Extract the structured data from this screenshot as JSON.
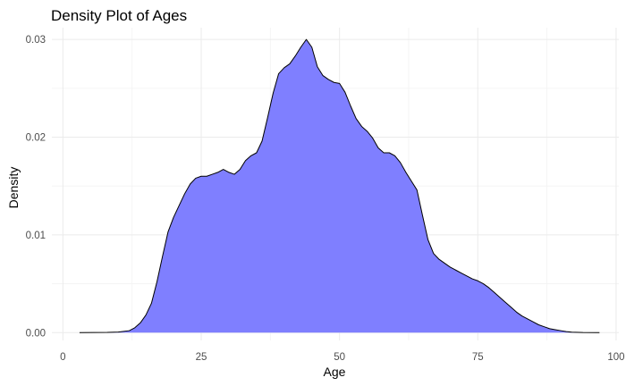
{
  "chart_data": {
    "type": "area",
    "title": "Density Plot of Ages",
    "xlabel": "Age",
    "ylabel": "Density",
    "xlim": [
      -2,
      100.5
    ],
    "ylim": [
      -0.0008,
      0.0312
    ],
    "xticks": [
      0,
      25,
      50,
      75,
      100
    ],
    "xtick_labels": [
      "0",
      "25",
      "50",
      "75",
      "100"
    ],
    "yticks": [
      0,
      0.01,
      0.02,
      0.03
    ],
    "ytick_labels": [
      "0.00",
      "0.01",
      "0.02",
      "0.03"
    ],
    "grid": true,
    "legend": "none",
    "fill_color": "#7f7fff",
    "line_color": "#000000",
    "series": [
      {
        "x": [
          3,
          8,
          10,
          12,
          13,
          14,
          15,
          16,
          17,
          18,
          19,
          20,
          21,
          22,
          23,
          24,
          25,
          26,
          27,
          28,
          29,
          30,
          31,
          32,
          33,
          34,
          35,
          36,
          37,
          38,
          39,
          40,
          41,
          42,
          43,
          44,
          45,
          46,
          47,
          48,
          49,
          50,
          51,
          52,
          53,
          54,
          55,
          56,
          57,
          58,
          59,
          60,
          61,
          62,
          63,
          64,
          65,
          66,
          67,
          68,
          69,
          70,
          71,
          72,
          73,
          74,
          75,
          76,
          77,
          78,
          79,
          80,
          81,
          82,
          83,
          84,
          85,
          86,
          87,
          88,
          89,
          90,
          91,
          92,
          94,
          97
        ],
        "y": [
          0.0,
          2e-05,
          6e-05,
          0.0002,
          0.0005,
          0.001,
          0.0018,
          0.003,
          0.0052,
          0.0078,
          0.0103,
          0.0118,
          0.013,
          0.0142,
          0.0152,
          0.0158,
          0.016,
          0.016,
          0.0162,
          0.0164,
          0.0167,
          0.0164,
          0.0162,
          0.0167,
          0.0176,
          0.0181,
          0.0184,
          0.0196,
          0.022,
          0.0245,
          0.0265,
          0.0271,
          0.0275,
          0.0283,
          0.0292,
          0.03,
          0.0292,
          0.0272,
          0.0263,
          0.0259,
          0.0256,
          0.0255,
          0.0246,
          0.0232,
          0.0219,
          0.0211,
          0.0206,
          0.0199,
          0.0189,
          0.0184,
          0.0184,
          0.0181,
          0.0174,
          0.0164,
          0.0155,
          0.0146,
          0.012,
          0.0095,
          0.0081,
          0.0075,
          0.0071,
          0.0067,
          0.0064,
          0.0061,
          0.0058,
          0.0055,
          0.0053,
          0.005,
          0.0046,
          0.0041,
          0.0036,
          0.0031,
          0.0026,
          0.0021,
          0.0017,
          0.0014,
          0.0011,
          0.0008,
          0.0006,
          0.0004,
          0.0003,
          0.0002,
          0.0001,
          5e-05,
          1e-05,
          0.0
        ]
      }
    ]
  }
}
